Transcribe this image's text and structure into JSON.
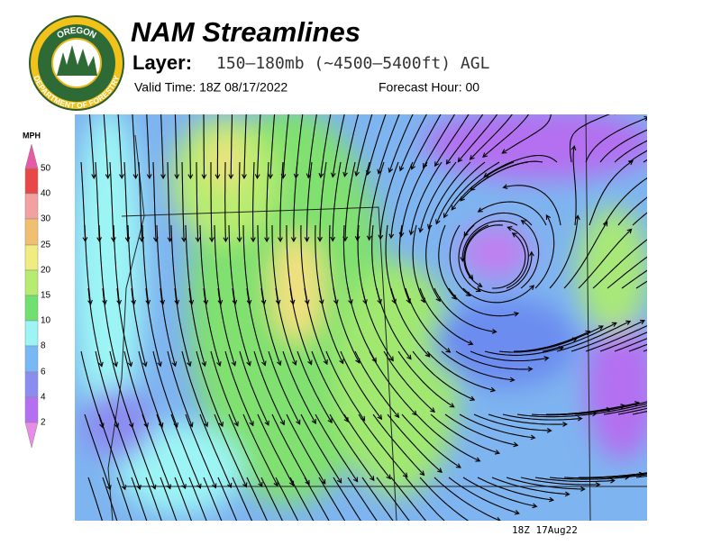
{
  "header": {
    "title": "NAM Streamlines",
    "layer_label": "Layer:",
    "layer": "150–180mb (~4500–5400ft) AGL",
    "valid_time": "Valid Time: 18Z 08/17/2022",
    "forecast_hour": "Forecast Hour: 00"
  },
  "logo": {
    "top_text": "OREGON",
    "bottom_text": "DEPARTMENT OF FORESTRY"
  },
  "legend": {
    "unit": "MPH",
    "ticks": [
      50,
      40,
      30,
      25,
      20,
      15,
      10,
      8,
      6,
      4,
      2
    ]
  },
  "footer": "18Z 17Aug22"
}
